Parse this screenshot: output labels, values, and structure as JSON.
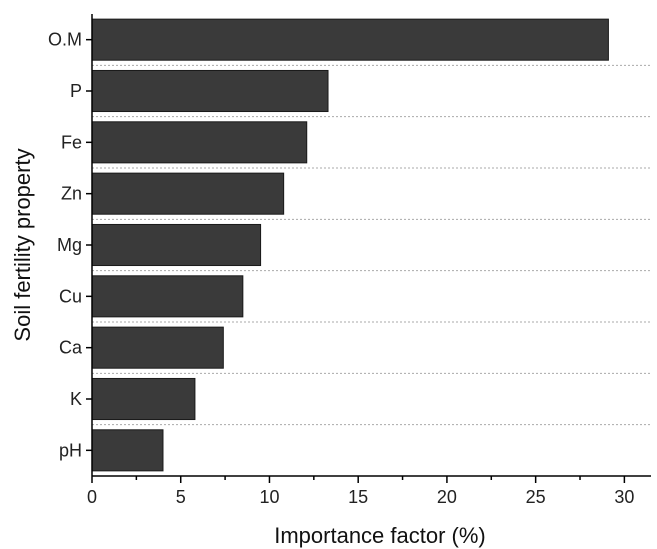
{
  "chart_data": {
    "type": "bar",
    "orientation": "horizontal",
    "title": "",
    "xlabel": "Importance factor (%)",
    "ylabel": "Soil fertility property",
    "xlim": [
      0,
      31.5
    ],
    "xticks": [
      0,
      5,
      10,
      15,
      20,
      25,
      30
    ],
    "xtick_labels": [
      "0",
      "5",
      "10",
      "15",
      "20",
      "25",
      "30"
    ],
    "categories": [
      "O.M",
      "P",
      "Fe",
      "Zn",
      "Mg",
      "Cu",
      "Ca",
      "K",
      "pH"
    ],
    "values": [
      29.1,
      13.3,
      12.1,
      10.8,
      9.5,
      8.5,
      7.4,
      5.8,
      4.0
    ],
    "bar_color": "#3a3a3a",
    "grid": "dashed horizontal separators between categories",
    "legend": "none"
  }
}
